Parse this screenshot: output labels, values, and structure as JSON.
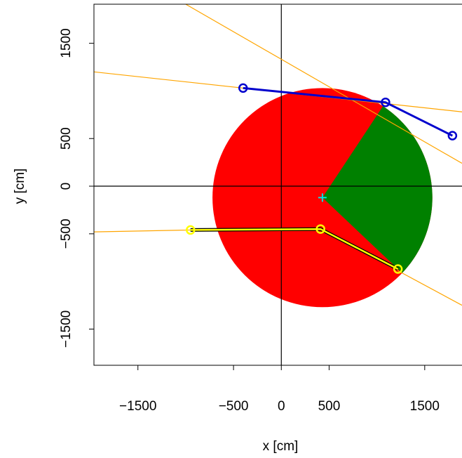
{
  "chart_data": {
    "type": "scatter",
    "xlabel": "x [cm]",
    "ylabel": "y [cm]",
    "xlim": [
      -1960,
      1890
    ],
    "ylim": [
      -1880,
      1910
    ],
    "x_ticks": [
      {
        "value": -1500,
        "label": "−1500"
      },
      {
        "value": -500,
        "label": "−500"
      },
      {
        "value": 0,
        "label": "0"
      },
      {
        "value": 500,
        "label": "500"
      },
      {
        "value": 1500,
        "label": "1500"
      }
    ],
    "y_ticks": [
      {
        "value": -1500,
        "label": "−1500"
      },
      {
        "value": -500,
        "label": "−500"
      },
      {
        "value": 0,
        "label": "0"
      },
      {
        "value": 500,
        "label": "500"
      },
      {
        "value": 1500,
        "label": "1500"
      }
    ],
    "reference_lines": [
      {
        "orientation": "vertical",
        "value": 0,
        "color": "#000000"
      },
      {
        "orientation": "horizontal",
        "value": 0,
        "color": "#000000"
      }
    ],
    "circle": {
      "center": [
        430,
        -120
      ],
      "radius": 1150,
      "fill_color": "#ff0000",
      "green_sector": {
        "from_point": [
          1220,
          -870
        ],
        "to_point": [
          1090,
          880
        ],
        "fill_color": "#008000"
      }
    },
    "center_marker": {
      "x": 430,
      "y": -120,
      "symbol": "+",
      "color": "#00e5e5"
    },
    "blue_path": {
      "color": "#0000cd",
      "points": [
        [
          -400,
          1030
        ],
        [
          1090,
          880
        ],
        [
          1790,
          530
        ]
      ]
    },
    "yellow_path": {
      "color": "#ffff00",
      "outline_color": "#000000",
      "points": [
        [
          -950,
          -460
        ],
        [
          410,
          -450
        ],
        [
          1220,
          -870
        ]
      ]
    },
    "orange_lines": {
      "color": "#ffa500",
      "segments": [
        [
          [
            -1000,
            1910
          ],
          [
            1890,
            240
          ]
        ],
        [
          [
            -1960,
            1200
          ],
          [
            1890,
            780
          ]
        ],
        [
          [
            -1960,
            -480
          ],
          [
            -950,
            -460
          ]
        ],
        [
          [
            410,
            -450
          ],
          [
            1890,
            -1250
          ]
        ]
      ]
    }
  }
}
